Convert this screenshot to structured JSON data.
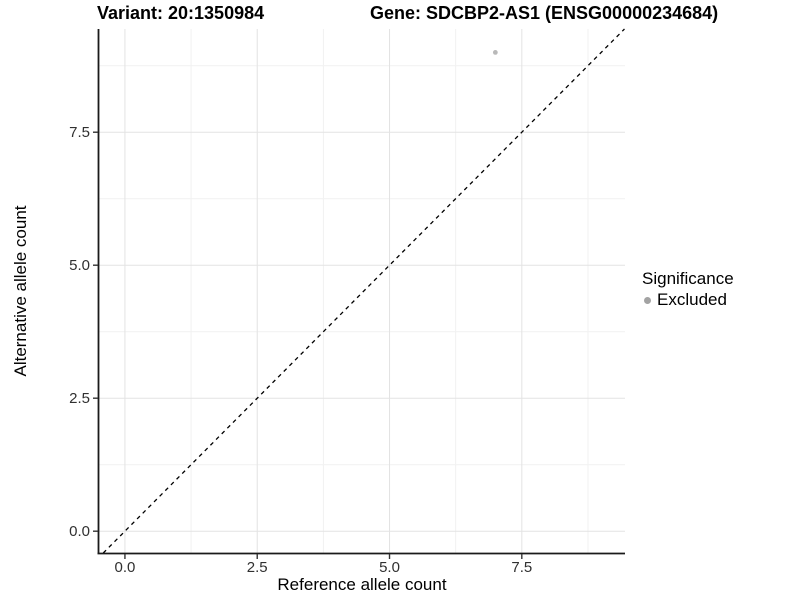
{
  "header": {
    "variant_title": "Variant: 20:1350984",
    "gene_title": "Gene: SDCBP2-AS1 (ENSG00000234684)"
  },
  "chart_data": {
    "type": "scatter",
    "title": "",
    "xlabel": "Reference allele count",
    "ylabel": "Alternative allele count",
    "xlim": [
      -0.49,
      9.45
    ],
    "ylim": [
      -0.41,
      9.44
    ],
    "xticks": [
      0.0,
      2.5,
      5.0,
      7.5
    ],
    "yticks": [
      0.0,
      2.5,
      5.0,
      7.5
    ],
    "xticks_minor": [
      1.25,
      3.75,
      6.25,
      8.75
    ],
    "yticks_minor": [
      1.25,
      3.75,
      6.25,
      8.75
    ],
    "tick_label_decimals": 1,
    "grid": "major+minor",
    "series": [
      {
        "name": "Excluded",
        "marker": "circle",
        "color": "#b9b9b9",
        "points": [
          {
            "x": 7,
            "y": 9
          }
        ]
      }
    ],
    "reference_line": {
      "kind": "identity y=x",
      "style": "dashed",
      "color": "#000000"
    },
    "legend": {
      "position": "right",
      "title": "Significance",
      "entries": [
        {
          "label": "Excluded",
          "color": "#a3a3a3"
        }
      ]
    },
    "colors": {
      "grid_major": "#e3e3e3",
      "grid_minor": "#f1f1f1",
      "axis_line": "#1a1a1a",
      "tick_mark": "#333333",
      "tick_label": "#303030",
      "panel_background": "#ffffff"
    }
  }
}
